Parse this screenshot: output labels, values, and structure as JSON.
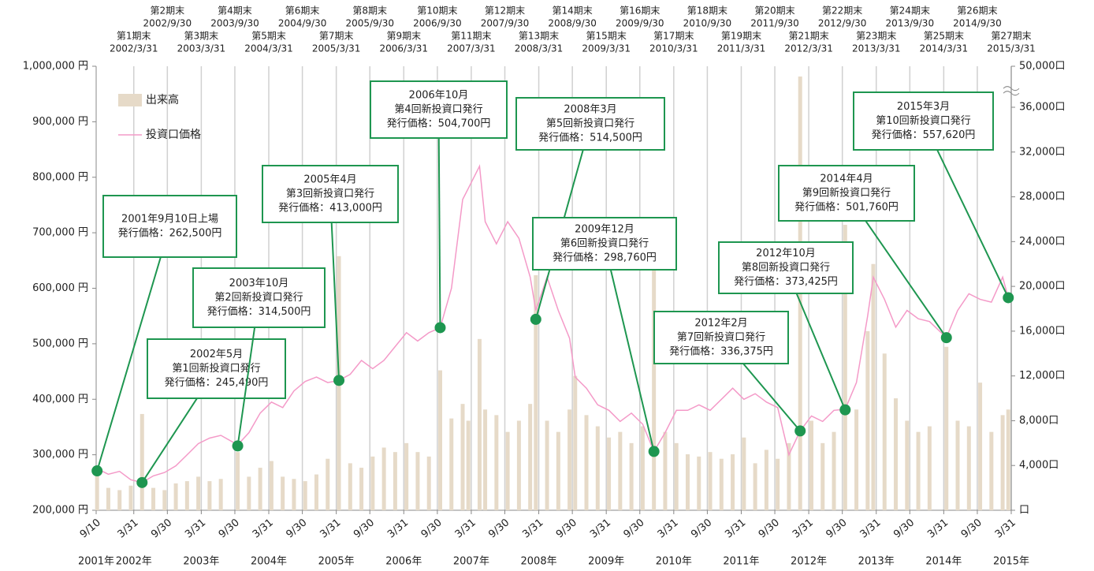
{
  "chart_data": {
    "type": "combo",
    "x": [
      "2001-09",
      "2001-11",
      "2002-01",
      "2002-03",
      "2002-05",
      "2002-07",
      "2002-09",
      "2002-11",
      "2003-01",
      "2003-03",
      "2003-05",
      "2003-07",
      "2003-10",
      "2003-12",
      "2004-02",
      "2004-04",
      "2004-06",
      "2004-08",
      "2004-10",
      "2004-12",
      "2005-02",
      "2005-04",
      "2005-06",
      "2005-08",
      "2005-10",
      "2005-12",
      "2006-02",
      "2006-04",
      "2006-06",
      "2006-08",
      "2006-10",
      "2006-12",
      "2007-02",
      "2007-03",
      "2007-05",
      "2007-06",
      "2007-08",
      "2007-10",
      "2007-12",
      "2008-02",
      "2008-03",
      "2008-05",
      "2008-07",
      "2008-09",
      "2008-10",
      "2008-12",
      "2009-02",
      "2009-04",
      "2009-06",
      "2009-08",
      "2009-10",
      "2009-12",
      "2010-02",
      "2010-04",
      "2010-06",
      "2010-08",
      "2010-10",
      "2010-12",
      "2011-02",
      "2011-04",
      "2011-06",
      "2011-08",
      "2011-10",
      "2011-12",
      "2012-02",
      "2012-04",
      "2012-06",
      "2012-08",
      "2012-10",
      "2012-12",
      "2013-02",
      "2013-03",
      "2013-05",
      "2013-07",
      "2013-09",
      "2013-11",
      "2014-01",
      "2014-04",
      "2014-06",
      "2014-08",
      "2014-10",
      "2014-12",
      "2015-02",
      "2015-03"
    ],
    "series": [
      {
        "name": "出来高",
        "type": "bar",
        "axis": "y2",
        "color": "#e6dac8",
        "values": [
          3500,
          2000,
          1800,
          2200,
          8600,
          2000,
          1800,
          2400,
          2600,
          3000,
          2600,
          2800,
          5200,
          3000,
          3800,
          4400,
          3000,
          2800,
          2600,
          3200,
          4600,
          22700,
          4200,
          3800,
          4800,
          5600,
          5200,
          6000,
          5200,
          4800,
          12500,
          8200,
          9500,
          8000,
          15300,
          9000,
          8500,
          7000,
          8000,
          9500,
          21000,
          8000,
          7000,
          9000,
          12000,
          8500,
          7500,
          6500,
          7000,
          6000,
          7500,
          21700,
          7000,
          6000,
          5000,
          4800,
          5200,
          4600,
          5000,
          6500,
          4200,
          5400,
          4600,
          6000,
          46500,
          8000,
          6000,
          7000,
          25500,
          9000,
          16000,
          22000,
          14000,
          10000,
          8000,
          7000,
          7500,
          14600,
          8000,
          7500,
          11400,
          7000,
          8500,
          9000
        ]
      },
      {
        "name": "投資口価格",
        "type": "line",
        "color": "#f49ac8",
        "values": [
          275000,
          265000,
          270000,
          255000,
          250000,
          262000,
          268000,
          280000,
          300000,
          320000,
          330000,
          335000,
          318000,
          340000,
          375000,
          395000,
          385000,
          415000,
          432000,
          440000,
          430000,
          434000,
          445000,
          470000,
          455000,
          470000,
          495000,
          520000,
          505000,
          520000,
          529000,
          600000,
          760000,
          780000,
          820000,
          720000,
          680000,
          720000,
          690000,
          620000,
          560000,
          620000,
          560000,
          510000,
          440000,
          420000,
          390000,
          380000,
          360000,
          375000,
          355000,
          306000,
          340000,
          380000,
          380000,
          390000,
          380000,
          400000,
          420000,
          400000,
          410000,
          395000,
          385000,
          300000,
          343000,
          370000,
          360000,
          380000,
          382000,
          430000,
          550000,
          620000,
          580000,
          530000,
          560000,
          545000,
          540000,
          511000,
          560000,
          590000,
          580000,
          575000,
          620000,
          583000
        ]
      }
    ],
    "ylim": [
      200000,
      1000000
    ],
    "yticks": [
      {
        "value": 200000,
        "label": "200,000 円"
      },
      {
        "value": 300000,
        "label": "300,000 円"
      },
      {
        "value": 400000,
        "label": "400,000 円"
      },
      {
        "value": 500000,
        "label": "500,000 円"
      },
      {
        "value": 600000,
        "label": "600,000 円"
      },
      {
        "value": 700000,
        "label": "700,000 円"
      },
      {
        "value": 800000,
        "label": "800,000 円"
      },
      {
        "value": 900000,
        "label": "900,000 円"
      },
      {
        "value": 1000000,
        "label": "1,000,000 円"
      }
    ],
    "y2lim": [
      0,
      50000
    ],
    "y2ticks": [
      {
        "value": 0,
        "label": "口"
      },
      {
        "value": 4000,
        "label": "4,000口"
      },
      {
        "value": 8000,
        "label": "8,000口"
      },
      {
        "value": 12000,
        "label": "12,000口"
      },
      {
        "value": 16000,
        "label": "16,000口"
      },
      {
        "value": 20000,
        "label": "20,000口"
      },
      {
        "value": 24000,
        "label": "24,000口"
      },
      {
        "value": 28000,
        "label": "28,000口"
      },
      {
        "value": 32000,
        "label": "32,000口"
      },
      {
        "value": 36000,
        "label": "36,000口"
      },
      {
        "value": 50000,
        "label": "50,000口"
      }
    ],
    "y2_broken": true,
    "xticks": [
      {
        "value": "2001-09-10",
        "label": "9/10"
      },
      {
        "value": "2002-03-31",
        "label": "3/31"
      },
      {
        "value": "2002-09-30",
        "label": "9/30"
      },
      {
        "value": "2003-03-31",
        "label": "3/31"
      },
      {
        "value": "2003-09-30",
        "label": "9/30"
      },
      {
        "value": "2004-03-31",
        "label": "3/31"
      },
      {
        "value": "2004-09-30",
        "label": "9/30"
      },
      {
        "value": "2005-03-31",
        "label": "3/31"
      },
      {
        "value": "2005-09-30",
        "label": "9/30"
      },
      {
        "value": "2006-03-31",
        "label": "3/31"
      },
      {
        "value": "2006-09-30",
        "label": "9/30"
      },
      {
        "value": "2007-03-31",
        "label": "3/31"
      },
      {
        "value": "2007-09-30",
        "label": "9/30"
      },
      {
        "value": "2008-03-31",
        "label": "3/31"
      },
      {
        "value": "2008-09-30",
        "label": "9/30"
      },
      {
        "value": "2009-03-31",
        "label": "3/31"
      },
      {
        "value": "2009-09-30",
        "label": "9/30"
      },
      {
        "value": "2010-03-31",
        "label": "3/31"
      },
      {
        "value": "2010-09-30",
        "label": "9/30"
      },
      {
        "value": "2011-03-31",
        "label": "3/31"
      },
      {
        "value": "2011-09-30",
        "label": "9/30"
      },
      {
        "value": "2012-03-31",
        "label": "3/31"
      },
      {
        "value": "2012-09-30",
        "label": "9/30"
      },
      {
        "value": "2013-03-31",
        "label": "3/31"
      },
      {
        "value": "2013-09-30",
        "label": "9/30"
      },
      {
        "value": "2014-03-31",
        "label": "3/31"
      },
      {
        "value": "2014-09-30",
        "label": "9/30"
      },
      {
        "value": "2015-03-31",
        "label": "3/31"
      }
    ],
    "year_labels": [
      {
        "value": "2001-09-10",
        "label": "2001年"
      },
      {
        "value": "2002-03-31",
        "label": "2002年"
      },
      {
        "value": "2003-03-31",
        "label": "2003年"
      },
      {
        "value": "2004-03-31",
        "label": "2004年"
      },
      {
        "value": "2005-03-31",
        "label": "2005年"
      },
      {
        "value": "2006-03-31",
        "label": "2006年"
      },
      {
        "value": "2007-03-31",
        "label": "2007年"
      },
      {
        "value": "2008-03-31",
        "label": "2008年"
      },
      {
        "value": "2009-03-31",
        "label": "2009年"
      },
      {
        "value": "2010-03-31",
        "label": "2010年"
      },
      {
        "value": "2011-03-31",
        "label": "2011年"
      },
      {
        "value": "2012-03-31",
        "label": "2012年"
      },
      {
        "value": "2013-03-31",
        "label": "2013年"
      },
      {
        "value": "2014-03-31",
        "label": "2014年"
      },
      {
        "value": "2015-03-31",
        "label": "2015年"
      }
    ],
    "period_ends": [
      {
        "label": "第1期末",
        "date": "2002/3/31"
      },
      {
        "label": "第2期末",
        "date": "2002/9/30"
      },
      {
        "label": "第3期末",
        "date": "2003/3/31"
      },
      {
        "label": "第4期末",
        "date": "2003/9/30"
      },
      {
        "label": "第5期末",
        "date": "2004/3/31"
      },
      {
        "label": "第6期末",
        "date": "2004/9/30"
      },
      {
        "label": "第7期末",
        "date": "2005/3/31"
      },
      {
        "label": "第8期末",
        "date": "2005/9/30"
      },
      {
        "label": "第9期末",
        "date": "2006/3/31"
      },
      {
        "label": "第10期末",
        "date": "2006/9/30"
      },
      {
        "label": "第11期末",
        "date": "2007/3/31"
      },
      {
        "label": "第12期末",
        "date": "2007/9/30"
      },
      {
        "label": "第13期末",
        "date": "2008/3/31"
      },
      {
        "label": "第14期末",
        "date": "2008/9/30"
      },
      {
        "label": "第15期末",
        "date": "2009/3/31"
      },
      {
        "label": "第16期末",
        "date": "2009/9/30"
      },
      {
        "label": "第17期末",
        "date": "2010/3/31"
      },
      {
        "label": "第18期末",
        "date": "2010/9/30"
      },
      {
        "label": "第19期末",
        "date": "2011/3/31"
      },
      {
        "label": "第20期末",
        "date": "2011/9/30"
      },
      {
        "label": "第21期末",
        "date": "2012/3/31"
      },
      {
        "label": "第22期末",
        "date": "2012/9/30"
      },
      {
        "label": "第23期末",
        "date": "2013/3/31"
      },
      {
        "label": "第24期末",
        "date": "2013/9/30"
      },
      {
        "label": "第25期末",
        "date": "2014/3/31"
      },
      {
        "label": "第26期末",
        "date": "2014/9/30"
      },
      {
        "label": "第27期末",
        "date": "2015/3/31"
      }
    ],
    "annotation_color": "#1e9650",
    "annotations": [
      {
        "x": "2001-09",
        "y": 271000,
        "lines": [
          "2001年9月10日上場",
          "発行価格：262,500円"
        ]
      },
      {
        "x": "2002-05",
        "y": 250000,
        "lines": [
          "2002年5月",
          "第1回新投資口発行",
          "発行価格：245,490円"
        ]
      },
      {
        "x": "2003-10",
        "y": 316000,
        "lines": [
          "2003年10月",
          "第2回新投資口発行",
          "発行価格：314,500円"
        ]
      },
      {
        "x": "2005-04",
        "y": 434000,
        "lines": [
          "2005年4月",
          "第3回新投資口発行",
          "発行価格：413,000円"
        ]
      },
      {
        "x": "2006-10",
        "y": 529000,
        "lines": [
          "2006年10月",
          "第4回新投資口発行",
          "発行価格：504,700円"
        ]
      },
      {
        "x": "2008-03",
        "y": 544000,
        "lines": [
          "2008年3月",
          "第5回新投資口発行",
          "発行価格：514,500円"
        ]
      },
      {
        "x": "2009-12",
        "y": 306000,
        "lines": [
          "2009年12月",
          "第6回新投資口発行",
          "発行価格：298,760円"
        ]
      },
      {
        "x": "2012-02",
        "y": 343000,
        "lines": [
          "2012年2月",
          "第7回新投資口発行",
          "発行価格：336,375円"
        ]
      },
      {
        "x": "2012-10",
        "y": 381000,
        "lines": [
          "2012年10月",
          "第8回新投資口発行",
          "発行価格：373,425円"
        ]
      },
      {
        "x": "2014-04",
        "y": 511000,
        "lines": [
          "2014年4月",
          "第9回新投資口発行",
          "発行価格：501,760円"
        ]
      },
      {
        "x": "2015-03",
        "y": 583000,
        "lines": [
          "2015年3月",
          "第10回新投資口発行",
          "発行価格：557,620円"
        ]
      }
    ]
  }
}
